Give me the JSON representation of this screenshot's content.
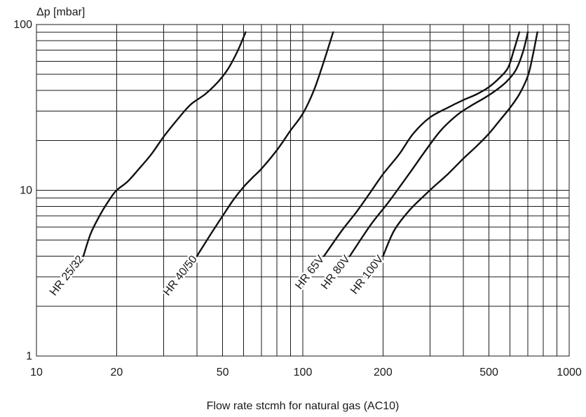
{
  "chart_data": {
    "type": "line",
    "title": "",
    "xlabel": "Flow rate stcmh for natural gas (AC10)",
    "ylabel": "Δp [mbar]",
    "xscale": "log",
    "yscale": "log",
    "xlim": [
      10,
      1000
    ],
    "ylim": [
      1,
      100
    ],
    "x_ticks": [
      "10",
      "20",
      "50",
      "100",
      "200",
      "500",
      "1000"
    ],
    "y_ticks": [
      "1",
      "10",
      "100"
    ],
    "grid": true,
    "series": [
      {
        "name": "HR 25/32",
        "x": [
          15,
          16,
          17.5,
          19,
          20,
          22,
          24,
          27,
          30,
          34,
          38,
          43,
          48,
          52,
          55,
          58,
          61
        ],
        "y": [
          4,
          5.5,
          7.3,
          9,
          10,
          11.3,
          13.2,
          16.5,
          21,
          27,
          33,
          38,
          45,
          53,
          62,
          74,
          90
        ]
      },
      {
        "name": "HR 40/50",
        "x": [
          40,
          45,
          50,
          55,
          60,
          65,
          70,
          80,
          90,
          100,
          110,
          120,
          130
        ],
        "y": [
          4,
          5.4,
          7,
          8.8,
          10.5,
          12,
          13.5,
          17.5,
          23,
          29,
          40,
          60,
          90
        ]
      },
      {
        "name": "HR 65V",
        "x": [
          120,
          140,
          160,
          180,
          200,
          230,
          260,
          300,
          350,
          400,
          450,
          500,
          550,
          590,
          620,
          650
        ],
        "y": [
          4,
          5.7,
          7.5,
          9.8,
          12.5,
          16.5,
          22,
          27.5,
          31.5,
          35,
          38,
          42,
          48,
          55,
          70,
          90
        ]
      },
      {
        "name": "HR 80V",
        "x": [
          150,
          180,
          210,
          250,
          290,
          330,
          380,
          430,
          480,
          530,
          580,
          630,
          670,
          700
        ],
        "y": [
          4,
          6.2,
          8.5,
          12.5,
          17.5,
          23,
          28.5,
          32.5,
          36,
          40,
          45,
          53,
          68,
          90
        ]
      },
      {
        "name": "HR 100V",
        "x": [
          200,
          220,
          250,
          290,
          310,
          350,
          400,
          450,
          500,
          550,
          600,
          650,
          700,
          730,
          760
        ],
        "y": [
          4,
          5.7,
          7.5,
          9.5,
          10.5,
          12.5,
          15.5,
          18.5,
          22,
          26.5,
          31.5,
          38,
          49,
          65,
          90
        ]
      }
    ]
  }
}
